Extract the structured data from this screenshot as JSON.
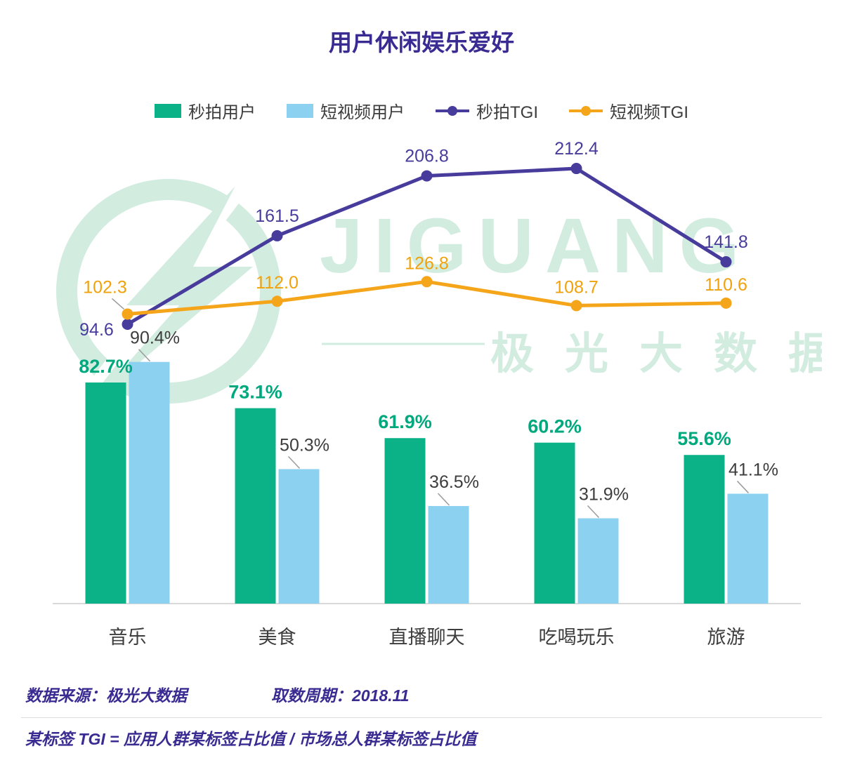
{
  "title": "用户休闲娱乐爱好",
  "legend": [
    {
      "label": "秒拍用户",
      "type": "bar",
      "color": "#0BB287"
    },
    {
      "label": "短视频用户",
      "type": "bar",
      "color": "#8DD1F1"
    },
    {
      "label": "秒拍TGI",
      "type": "line",
      "color": "#473C9C"
    },
    {
      "label": "短视频TGI",
      "type": "line",
      "color": "#F5A51A"
    }
  ],
  "chart_data": {
    "type": "bar+line",
    "title": "用户休闲娱乐爱好",
    "xlabel": "",
    "ylabel": "",
    "axes_visible": false,
    "grid": false,
    "legend_position": "top",
    "categories": [
      "音乐",
      "美食",
      "直播聊天",
      "吃喝玩乐",
      "旅游"
    ],
    "bar_series": [
      {
        "name": "秒拍用户",
        "color": "#0BB287",
        "unit": "%",
        "values": [
          82.7,
          73.1,
          61.9,
          60.2,
          55.6
        ],
        "labels": [
          "82.7%",
          "73.1%",
          "61.9%",
          "60.2%",
          "55.6%"
        ]
      },
      {
        "name": "短视频用户",
        "color": "#8DD1F1",
        "unit": "%",
        "values": [
          90.4,
          50.3,
          36.5,
          31.9,
          41.1
        ],
        "labels": [
          "90.4%",
          "50.3%",
          "36.5%",
          "31.9%",
          "41.1%"
        ]
      }
    ],
    "line_series": [
      {
        "name": "秒拍TGI",
        "color": "#473C9C",
        "values": [
          94.6,
          161.5,
          206.8,
          212.4,
          141.8
        ],
        "labels": [
          "94.6",
          "161.5",
          "206.8",
          "212.4",
          "141.8"
        ]
      },
      {
        "name": "短视频TGI",
        "color": "#F5A51A",
        "values": [
          102.3,
          112.0,
          126.8,
          108.7,
          110.6
        ],
        "labels": [
          "102.3",
          "112.0",
          "126.8",
          "108.7",
          "110.6"
        ]
      }
    ],
    "ylim_bars": [
      0,
      100
    ],
    "ylim_lines": [
      80,
      240
    ]
  },
  "watermark": {
    "brand": "JIGUANG",
    "brand_cn": "极光大数据",
    "color": "#A7DAC3"
  },
  "footer": {
    "source": "数据来源：极光大数据",
    "period": "取数周期：2018.11",
    "note": "某标签 TGI = 应用人群某标签占比值 / 市场总人群某标签占比值"
  }
}
